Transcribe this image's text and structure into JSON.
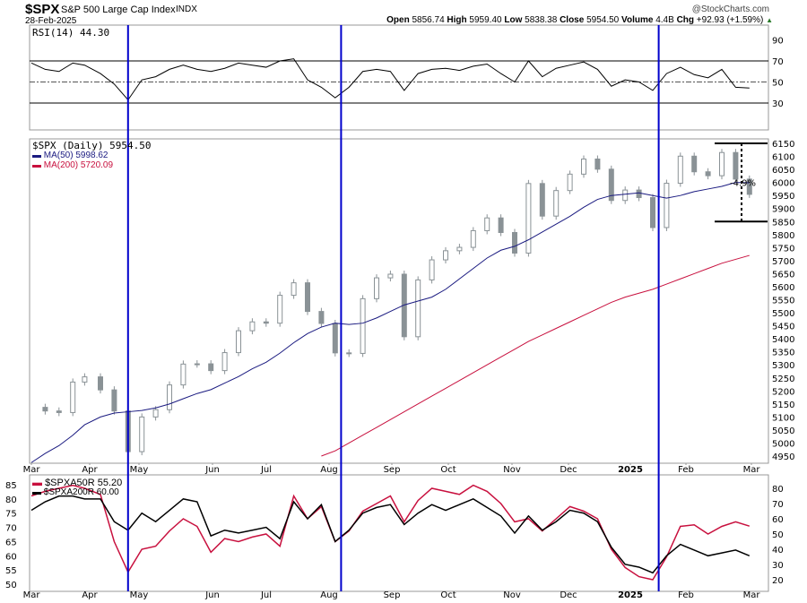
{
  "header": {
    "symbol": "$SPX",
    "name": "S&P 500 Large Cap Index",
    "exchange": "INDX",
    "date": "28-Feb-2025",
    "watermark": "@StockCharts.com",
    "open_label": "Open",
    "open": "5856.74",
    "high_label": "High",
    "high": "5959.40",
    "low_label": "Low",
    "low": "5838.38",
    "close_label": "Close",
    "close": "5954.50",
    "volume_label": "Volume",
    "volume": "4.4B",
    "chg_label": "Chg",
    "chg": "+92.93 (+1.59%)",
    "chg_arrow": "▲"
  },
  "chart_data": [
    {
      "type": "line",
      "title": "RSI(14) 44.30",
      "yaxis_ticks": [
        90,
        70,
        50,
        30
      ],
      "ylim": [
        10,
        100
      ],
      "reference_lines": [
        70,
        50,
        30
      ],
      "grid": false,
      "series": [
        {
          "name": "RSI(14)",
          "values": [
            68,
            62,
            60,
            68,
            66,
            58,
            48,
            33,
            52,
            55,
            62,
            66,
            62,
            60,
            63,
            68,
            66,
            64,
            70,
            72,
            52,
            45,
            35,
            45,
            60,
            62,
            60,
            42,
            58,
            62,
            63,
            61,
            65,
            67,
            58,
            50,
            70,
            55,
            63,
            66,
            69,
            62,
            46,
            52,
            50,
            42,
            58,
            64,
            57,
            54,
            62,
            45,
            44.3
          ]
        }
      ]
    },
    {
      "type": "candlestick",
      "legend": [
        "$SPX (Daily) 5954.50",
        "MA(50) 5998.62",
        "MA(200) 5720.09"
      ],
      "ylim": [
        4925,
        6175
      ],
      "yaxis_ticks": [
        6150,
        6100,
        6050,
        6000,
        5950,
        5900,
        5850,
        5800,
        5750,
        5700,
        5650,
        5600,
        5550,
        5500,
        5450,
        5400,
        5350,
        5300,
        5250,
        5200,
        5150,
        5100,
        5050,
        5000,
        4950
      ],
      "xaxis_ticks": [
        "Mar",
        "Apr",
        "May",
        "Jun",
        "Jul",
        "Aug",
        "Sep",
        "Oct",
        "Nov",
        "Dec",
        "2025",
        "Feb",
        "Mar"
      ],
      "close": [
        5137,
        5123,
        5117,
        5234,
        5254,
        5204,
        5123,
        4967,
        5100,
        5128,
        5223,
        5303,
        5304,
        5278,
        5347,
        5431,
        5465,
        5460,
        5567,
        5615,
        5505,
        5459,
        5346,
        5344,
        5554,
        5634,
        5648,
        5408,
        5626,
        5703,
        5738,
        5751,
        5815,
        5864,
        5808,
        5729,
        5996,
        5871,
        5969,
        6032,
        6090,
        6051,
        5931,
        5971,
        5942,
        5827,
        5997,
        6101,
        6041,
        6026,
        6115,
        6013,
        5954.5
      ],
      "ma50": [
        4925,
        4960,
        4990,
        5030,
        5070,
        5100,
        5115,
        5120,
        5125,
        5135,
        5150,
        5170,
        5190,
        5205,
        5230,
        5255,
        5285,
        5310,
        5345,
        5385,
        5420,
        5445,
        5460,
        5455,
        5460,
        5480,
        5505,
        5530,
        5545,
        5560,
        5590,
        5630,
        5670,
        5710,
        5740,
        5755,
        5780,
        5810,
        5840,
        5870,
        5905,
        5935,
        5950,
        5955,
        5960,
        5950,
        5940,
        5950,
        5965,
        5975,
        5985,
        6000,
        5998.62
      ],
      "ma200": [
        null,
        null,
        null,
        null,
        null,
        null,
        null,
        null,
        null,
        null,
        null,
        null,
        null,
        null,
        null,
        null,
        null,
        null,
        null,
        null,
        null,
        4950,
        4970,
        5000,
        5030,
        5060,
        5090,
        5120,
        5150,
        5180,
        5210,
        5240,
        5270,
        5300,
        5330,
        5360,
        5390,
        5415,
        5440,
        5465,
        5490,
        5515,
        5540,
        5560,
        5575,
        5590,
        5610,
        5630,
        5650,
        5670,
        5690,
        5705,
        5720.09
      ],
      "annotation": {
        "label": "-4.9%",
        "top": 6150,
        "bottom": 5850
      },
      "vertical_markers": [
        "2024-04-19",
        "2024-08-05",
        "2025-01-13"
      ]
    },
    {
      "type": "line",
      "legend": [
        "$SPXA50R 55.20",
        "$SPXA200R 60.00"
      ],
      "left_axis_ticks": [
        85,
        80,
        75,
        70,
        65,
        60,
        55,
        50
      ],
      "right_axis_ticks": [
        80,
        70,
        60,
        50,
        40,
        30,
        20
      ],
      "series": [
        {
          "name": "$SPXA50R",
          "axis": "right",
          "color": "#c8103e",
          "values": [
            75,
            78,
            80,
            82,
            80,
            76,
            45,
            25,
            40,
            42,
            52,
            60,
            55,
            38,
            47,
            45,
            48,
            50,
            42,
            75,
            60,
            68,
            45,
            52,
            65,
            70,
            75,
            58,
            72,
            80,
            78,
            76,
            82,
            78,
            70,
            58,
            60,
            52,
            60,
            68,
            65,
            60,
            40,
            28,
            22,
            20,
            35,
            55,
            56,
            50,
            55,
            58,
            55.2
          ]
        },
        {
          "name": "$SPXA200R",
          "axis": "left",
          "color": "#000000",
          "values": [
            76,
            79,
            81,
            81,
            80,
            80,
            72,
            69,
            75,
            72,
            76,
            80,
            79,
            67,
            69,
            68,
            69,
            70,
            66,
            79,
            73,
            78,
            65,
            69,
            75,
            77,
            78,
            71,
            75,
            78,
            76,
            78,
            80,
            77,
            74,
            68,
            74,
            69,
            72,
            76,
            75,
            72,
            63,
            57,
            56,
            54,
            60,
            64,
            62,
            60,
            61,
            62,
            60
          ]
        }
      ]
    }
  ],
  "dates": [
    "2024-03-01",
    "2024-03-08",
    "2024-03-15",
    "2024-03-22",
    "2024-03-28",
    "2024-04-05",
    "2024-04-12",
    "2024-04-19",
    "2024-04-26",
    "2024-05-03",
    "2024-05-10",
    "2024-05-17",
    "2024-05-24",
    "2024-05-31",
    "2024-06-07",
    "2024-06-14",
    "2024-06-21",
    "2024-06-28",
    "2024-07-05",
    "2024-07-12",
    "2024-07-19",
    "2024-07-26",
    "2024-08-02",
    "2024-08-09",
    "2024-08-16",
    "2024-08-23",
    "2024-08-30",
    "2024-09-06",
    "2024-09-13",
    "2024-09-20",
    "2024-09-27",
    "2024-10-04",
    "2024-10-11",
    "2024-10-18",
    "2024-10-25",
    "2024-11-01",
    "2024-11-08",
    "2024-11-15",
    "2024-11-22",
    "2024-11-29",
    "2024-12-06",
    "2024-12-13",
    "2024-12-20",
    "2024-12-27",
    "2025-01-03",
    "2025-01-10",
    "2025-01-17",
    "2025-01-24",
    "2025-01-31",
    "2025-02-07",
    "2025-02-14",
    "2025-02-21",
    "2025-02-28"
  ],
  "colors": {
    "price": "#8a9296",
    "ma50": "#1a1a80",
    "ma200": "#c8103e",
    "marker": "#0000cc",
    "rsi_fill": "#4d7a4d"
  }
}
